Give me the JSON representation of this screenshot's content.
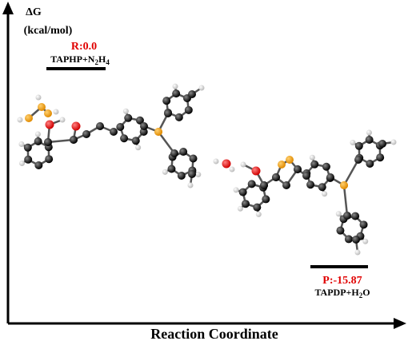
{
  "axes": {
    "y_label": "ΔG",
    "y_unit": "(kcal/mol)",
    "x_label": "Reaction Coordinate"
  },
  "states": [
    {
      "label": "R:0.0",
      "species": [
        "TAPHP+N",
        "2",
        "H",
        "4"
      ]
    },
    {
      "label": "P:-15.87",
      "species": [
        "TAPDP+H",
        "2",
        "O"
      ]
    }
  ]
}
